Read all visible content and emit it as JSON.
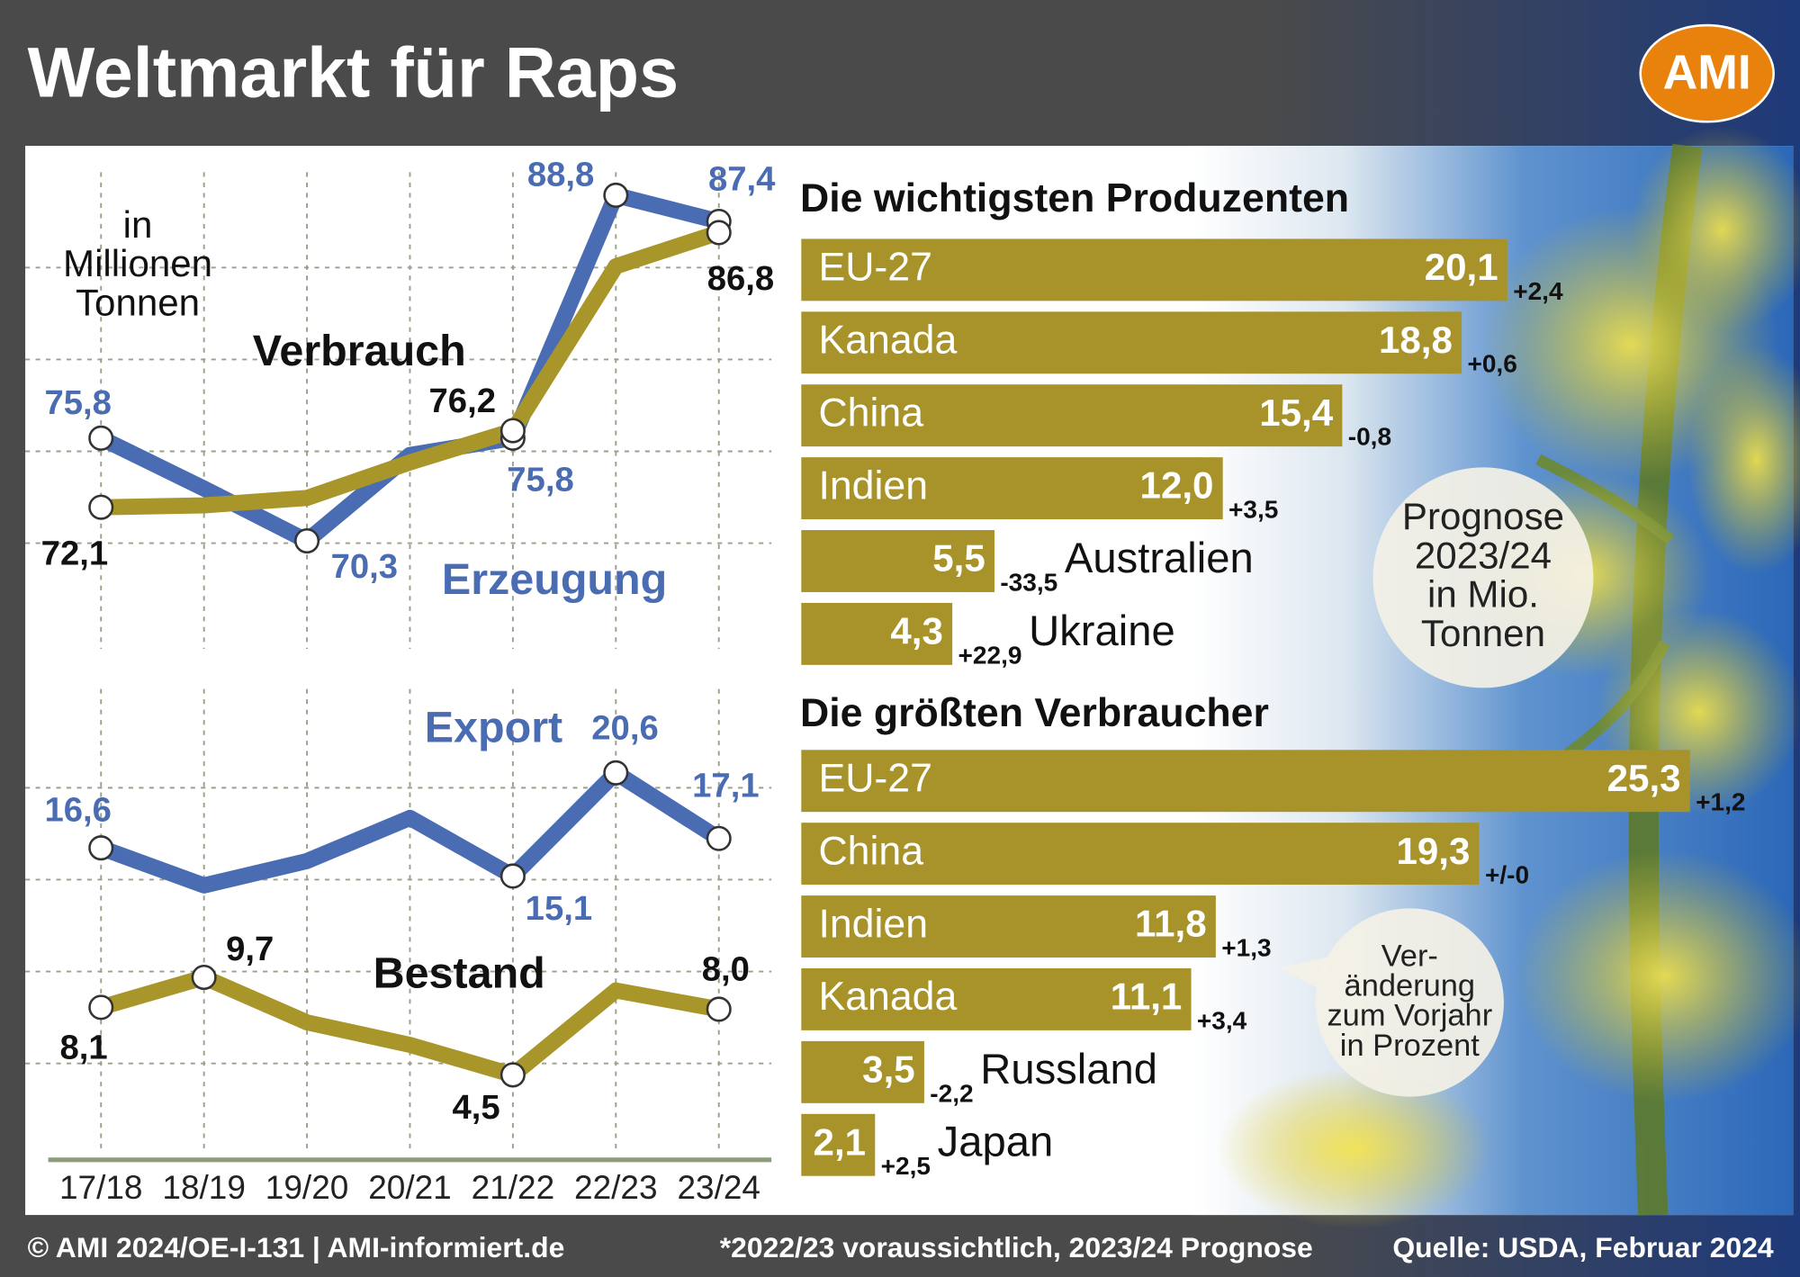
{
  "title": "Weltmarkt für Raps",
  "logo": "AMI",
  "footer": {
    "copyright": "© AMI 2024/OE-I-131 | AMI-informiert.de",
    "note": "*2022/23 voraussichtlich, 2023/24 Prognose",
    "source": "Quelle: USDA, Februar 2024"
  },
  "chart_data": [
    {
      "type": "line",
      "unit_label": [
        "in",
        "Millionen",
        "Tonnen"
      ],
      "categories": [
        "17/18",
        "18/19",
        "19/20",
        "20/21",
        "21/22",
        "22/23",
        "23/24"
      ],
      "series": [
        {
          "name": "Erzeugung",
          "color": "#4a6cb3",
          "values": [
            75.8,
            73.1,
            70.3,
            74.9,
            75.8,
            88.8,
            87.4
          ],
          "value_labels": [
            "75,8",
            null,
            "70,3",
            null,
            "75,8",
            "88,8",
            "87,4"
          ]
        },
        {
          "name": "Verbrauch",
          "color": "#a8962a",
          "values": [
            72.1,
            72.2,
            72.6,
            74.5,
            76.2,
            85.0,
            86.8
          ],
          "value_labels": [
            "72,1",
            null,
            null,
            null,
            "76,2",
            null,
            "86,8"
          ]
        }
      ]
    },
    {
      "type": "line",
      "series": [
        {
          "name": "Export",
          "color": "#4a6cb3",
          "values": [
            16.6,
            14.6,
            15.9,
            18.2,
            15.1,
            20.6,
            17.1
          ],
          "value_labels": [
            "16,6",
            null,
            null,
            null,
            "15,1",
            "20,6",
            "17,1"
          ]
        },
        {
          "name": "Bestand",
          "color": "#a8962a",
          "values": [
            8.1,
            9.7,
            7.3,
            6.1,
            4.5,
            9.0,
            8.0
          ],
          "value_labels": [
            "8,1",
            "9,7",
            null,
            null,
            "4,5",
            null,
            "8,0"
          ]
        }
      ]
    },
    {
      "type": "bar",
      "title": "Die wichtigsten Produzenten",
      "note": [
        "Prognose",
        "2023/24",
        "in Mio.",
        "Tonnen"
      ],
      "color": "#a8932a",
      "categories": [
        "EU-27",
        "Kanada",
        "China",
        "Indien",
        "Australien",
        "Ukraine"
      ],
      "values": [
        20.1,
        18.8,
        15.4,
        12.0,
        5.5,
        4.3
      ],
      "value_labels": [
        "20,1",
        "18,8",
        "15,4",
        "12,0",
        "5,5",
        "4,3"
      ],
      "changes": [
        "+2,4",
        "+0,6",
        "-0,8",
        "+3,5",
        "-33,5",
        "+22,9"
      ]
    },
    {
      "type": "bar",
      "title": "Die größten Verbraucher",
      "note": [
        "Ver-",
        "änderung",
        "zum Vorjahr",
        "in Prozent"
      ],
      "color": "#a8932a",
      "categories": [
        "EU-27",
        "China",
        "Indien",
        "Kanada",
        "Russland",
        "Japan"
      ],
      "values": [
        25.3,
        19.3,
        11.8,
        11.1,
        3.5,
        2.1
      ],
      "value_labels": [
        "25,3",
        "19,3",
        "11,8",
        "11,1",
        "3,5",
        "2,1"
      ],
      "changes": [
        "+1,2",
        "+/-0",
        "+1,3",
        "+3,4",
        "-2,2",
        "+2,5"
      ]
    }
  ]
}
